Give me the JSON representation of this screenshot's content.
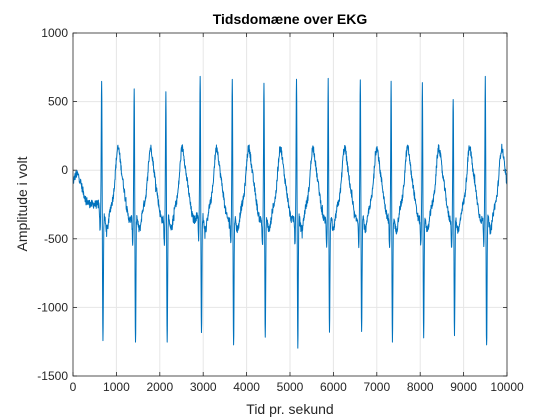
{
  "chart_data": {
    "type": "line",
    "title": "Tidsdomæne over EKG",
    "xlabel": "Tid pr. sekund",
    "ylabel": "Amplitude i volt",
    "xlim": [
      0,
      10000
    ],
    "ylim": [
      -1500,
      1000
    ],
    "xticks": [
      0,
      1000,
      2000,
      3000,
      4000,
      5000,
      6000,
      7000,
      8000,
      9000,
      10000
    ],
    "yticks": [
      -1500,
      -1000,
      -500,
      0,
      500,
      1000
    ],
    "xtick_labels": [
      "0",
      "1000",
      "2000",
      "3000",
      "4000",
      "5000",
      "6000",
      "7000",
      "8000",
      "9000",
      "10000"
    ],
    "ytick_labels": [
      "-1500",
      "-1000",
      "-500",
      "0",
      "500",
      "1000"
    ],
    "grid": true,
    "series_color": "#0072BD",
    "beat_times": [
      660,
      1410,
      2140,
      2930,
      3670,
      4400,
      5150,
      5880,
      6620,
      7330,
      8050,
      8760,
      9500
    ],
    "r_peak_amplitudes": [
      690,
      670,
      670,
      750,
      750,
      720,
      750,
      740,
      750,
      730,
      700,
      640,
      750
    ],
    "s_trough_amplitudes": [
      -1240,
      -1230,
      -1180,
      -1180,
      -1240,
      -1160,
      -1240,
      -1120,
      -1160,
      -1160,
      -1160,
      -1130,
      -1250
    ],
    "baseline_amplitude": -250,
    "noise_amplitude": 30,
    "sample_step": 5
  }
}
